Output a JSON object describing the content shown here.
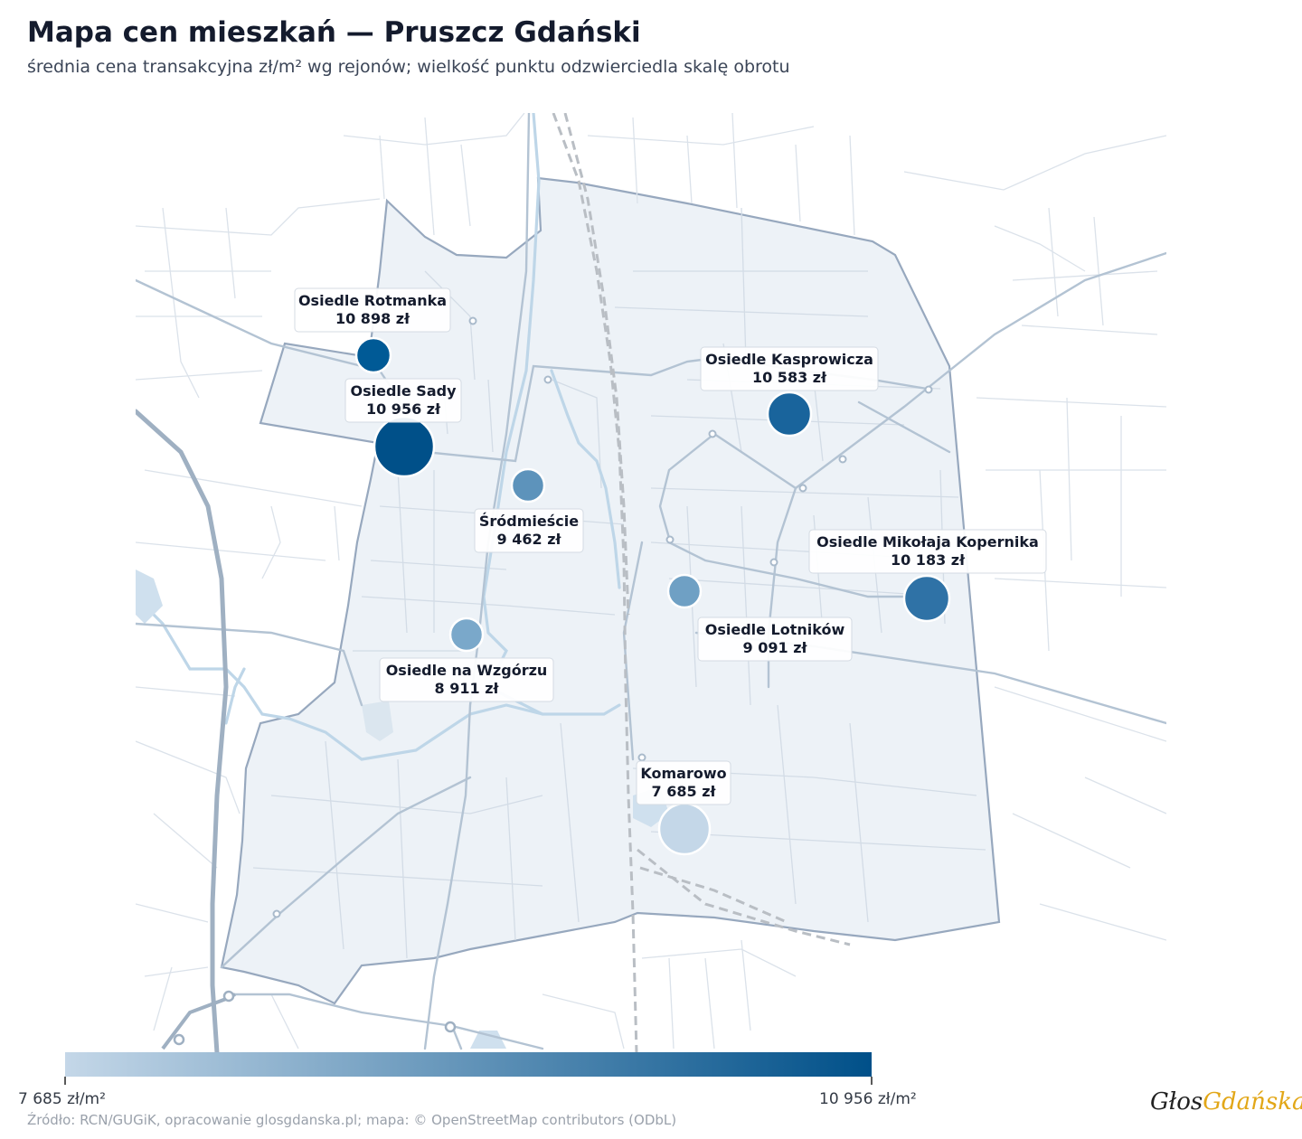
{
  "title": "Mapa cen mieszkań — Pruszcz Gdański",
  "subtitle": "średnia cena transakcyjna zł/m² wg rejonów; wielkość punktu odzwierciedla skalę obrotu",
  "colorscale": {
    "min_label": "7 685 zł/m²",
    "max_label": "10 956 zł/m²",
    "min": 7685,
    "max": 10956,
    "color_low": "#c4d7e8",
    "color_high": "#005089"
  },
  "districts": [
    {
      "name": "Osiedle Rotmanka",
      "price_label": "10 898 zł",
      "price": 10898,
      "color": "#005a96"
    },
    {
      "name": "Osiedle Sady",
      "price_label": "10 956 zł",
      "price": 10956,
      "color": "#005089"
    },
    {
      "name": "Osiedle Kasprowicza",
      "price_label": "10 583 zł",
      "price": 10583,
      "color": "#19649c"
    },
    {
      "name": "Śródmieście",
      "price_label": "9 462 zł",
      "price": 9462,
      "color": "#5d93bb"
    },
    {
      "name": "Osiedle Mikołaja Kopernika",
      "price_label": "10 183 zł",
      "price": 10183,
      "color": "#2f72a6"
    },
    {
      "name": "Osiedle Lotników",
      "price_label": "9 091 zł",
      "price": 9091,
      "color": "#6fa0c4"
    },
    {
      "name": "Osiedle na Wzgórzu",
      "price_label": "8 911 zł",
      "price": 8911,
      "color": "#7aa8ca"
    },
    {
      "name": "Komarowo",
      "price_label": "7 685 zł",
      "price": 7685,
      "color": "#c4d7e8"
    }
  ],
  "source": "Źródło: RCN/GUGiK, opracowanie glosgdanska.pl; mapa: © OpenStreetMap contributors (ODbL)",
  "logo": {
    "part1": "Głos",
    "part2": "Gdańska"
  }
}
